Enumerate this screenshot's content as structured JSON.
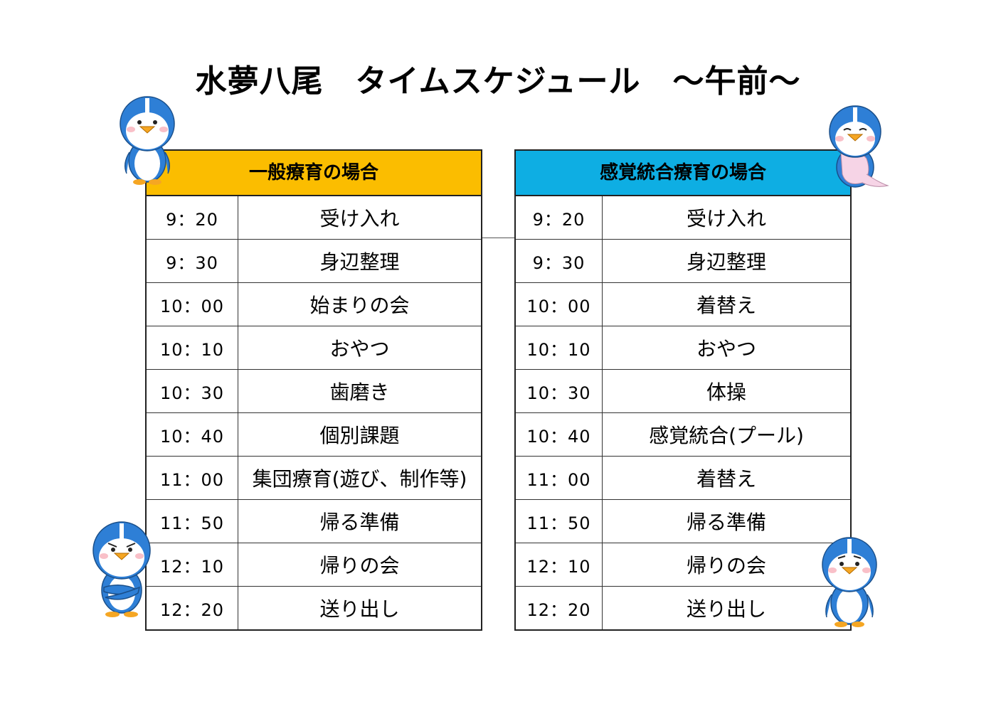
{
  "title": "水夢八尾　タイムスケジュール　～午前～",
  "schedules": [
    {
      "heading": "一般療育の場合",
      "color": "#fbbd00",
      "rows": [
        {
          "time": "9：20",
          "activity": "受け入れ"
        },
        {
          "time": "9：30",
          "activity": "身辺整理"
        },
        {
          "time": "10：00",
          "activity": "始まりの会"
        },
        {
          "time": "10：10",
          "activity": "おやつ"
        },
        {
          "time": "10：30",
          "activity": "歯磨き"
        },
        {
          "time": "10：40",
          "activity": "個別課題"
        },
        {
          "time": "11：00",
          "activity": "集団療育(遊び、制作等)"
        },
        {
          "time": "11：50",
          "activity": "帰る準備"
        },
        {
          "time": "12：10",
          "activity": "帰りの会"
        },
        {
          "time": "12：20",
          "activity": "送り出し"
        }
      ]
    },
    {
      "heading": "感覚統合療育の場合",
      "color": "#0eaee3",
      "rows": [
        {
          "time": "9：20",
          "activity": "受け入れ"
        },
        {
          "time": "9：30",
          "activity": "身辺整理"
        },
        {
          "time": "10：00",
          "activity": "着替え"
        },
        {
          "time": "10：10",
          "activity": "おやつ"
        },
        {
          "time": "10：30",
          "activity": "体操"
        },
        {
          "time": "10：40",
          "activity": "感覚統合(プール)"
        },
        {
          "time": "11：00",
          "activity": "着替え"
        },
        {
          "time": "11：50",
          "activity": "帰る準備"
        },
        {
          "time": "12：10",
          "activity": "帰りの会"
        },
        {
          "time": "12：20",
          "activity": "送り出し"
        }
      ]
    }
  ],
  "mascots": [
    "penguin-waving",
    "penguin-shy",
    "penguin-arms-crossed",
    "penguin-worried"
  ]
}
